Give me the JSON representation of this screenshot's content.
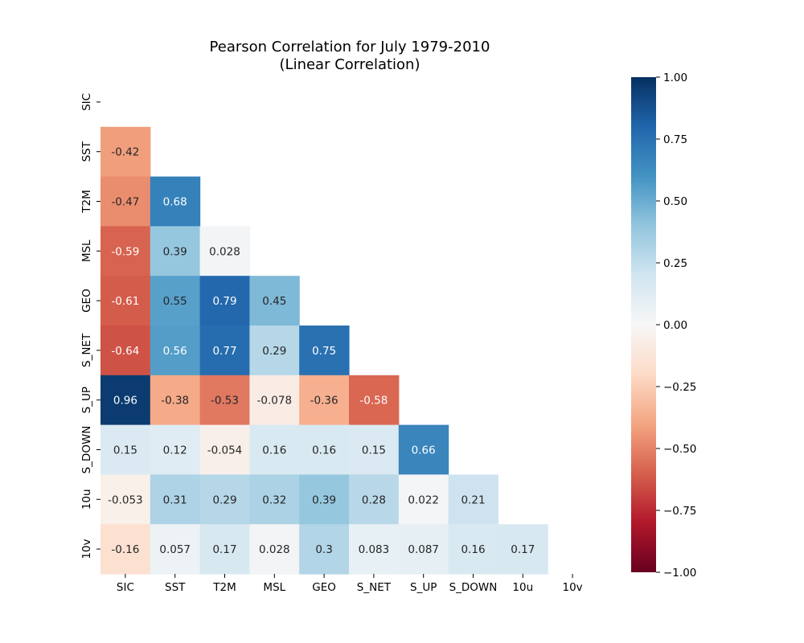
{
  "chart_data": {
    "type": "heatmap",
    "title_lines": [
      "Pearson Correlation for July 1979-2010",
      "(Linear Correlation)"
    ],
    "xlabel": "",
    "ylabel": "",
    "labels": [
      "SIC",
      "SST",
      "T2M",
      "MSL",
      "GEO",
      "S_NET",
      "S_UP",
      "S_DOWN",
      "10u",
      "10v"
    ],
    "mask": "upper-triangle-including-diagonal",
    "cells": [
      {
        "row": 1,
        "col": 0,
        "value": -0.42,
        "label": "-0.42"
      },
      {
        "row": 2,
        "col": 0,
        "value": -0.47,
        "label": "-0.47"
      },
      {
        "row": 2,
        "col": 1,
        "value": 0.68,
        "label": "0.68"
      },
      {
        "row": 3,
        "col": 0,
        "value": -0.59,
        "label": "-0.59"
      },
      {
        "row": 3,
        "col": 1,
        "value": 0.39,
        "label": "0.39"
      },
      {
        "row": 3,
        "col": 2,
        "value": 0.028,
        "label": "0.028"
      },
      {
        "row": 4,
        "col": 0,
        "value": -0.61,
        "label": "-0.61"
      },
      {
        "row": 4,
        "col": 1,
        "value": 0.55,
        "label": "0.55"
      },
      {
        "row": 4,
        "col": 2,
        "value": 0.79,
        "label": "0.79"
      },
      {
        "row": 4,
        "col": 3,
        "value": 0.45,
        "label": "0.45"
      },
      {
        "row": 5,
        "col": 0,
        "value": -0.64,
        "label": "-0.64"
      },
      {
        "row": 5,
        "col": 1,
        "value": 0.56,
        "label": "0.56"
      },
      {
        "row": 5,
        "col": 2,
        "value": 0.77,
        "label": "0.77"
      },
      {
        "row": 5,
        "col": 3,
        "value": 0.29,
        "label": "0.29"
      },
      {
        "row": 5,
        "col": 4,
        "value": 0.75,
        "label": "0.75"
      },
      {
        "row": 6,
        "col": 0,
        "value": 0.96,
        "label": "0.96"
      },
      {
        "row": 6,
        "col": 1,
        "value": -0.38,
        "label": "-0.38"
      },
      {
        "row": 6,
        "col": 2,
        "value": -0.53,
        "label": "-0.53"
      },
      {
        "row": 6,
        "col": 3,
        "value": -0.078,
        "label": "-0.078"
      },
      {
        "row": 6,
        "col": 4,
        "value": -0.36,
        "label": "-0.36"
      },
      {
        "row": 6,
        "col": 5,
        "value": -0.58,
        "label": "-0.58"
      },
      {
        "row": 7,
        "col": 0,
        "value": 0.15,
        "label": "0.15"
      },
      {
        "row": 7,
        "col": 1,
        "value": 0.12,
        "label": "0.12"
      },
      {
        "row": 7,
        "col": 2,
        "value": -0.054,
        "label": "-0.054"
      },
      {
        "row": 7,
        "col": 3,
        "value": 0.16,
        "label": "0.16"
      },
      {
        "row": 7,
        "col": 4,
        "value": 0.16,
        "label": "0.16"
      },
      {
        "row": 7,
        "col": 5,
        "value": 0.15,
        "label": "0.15"
      },
      {
        "row": 7,
        "col": 6,
        "value": 0.66,
        "label": "0.66"
      },
      {
        "row": 8,
        "col": 0,
        "value": -0.053,
        "label": "-0.053"
      },
      {
        "row": 8,
        "col": 1,
        "value": 0.31,
        "label": "0.31"
      },
      {
        "row": 8,
        "col": 2,
        "value": 0.29,
        "label": "0.29"
      },
      {
        "row": 8,
        "col": 3,
        "value": 0.32,
        "label": "0.32"
      },
      {
        "row": 8,
        "col": 4,
        "value": 0.39,
        "label": "0.39"
      },
      {
        "row": 8,
        "col": 5,
        "value": 0.28,
        "label": "0.28"
      },
      {
        "row": 8,
        "col": 6,
        "value": 0.022,
        "label": "0.022"
      },
      {
        "row": 8,
        "col": 7,
        "value": 0.21,
        "label": "0.21"
      },
      {
        "row": 9,
        "col": 0,
        "value": -0.16,
        "label": "-0.16"
      },
      {
        "row": 9,
        "col": 1,
        "value": 0.057,
        "label": "0.057"
      },
      {
        "row": 9,
        "col": 2,
        "value": 0.17,
        "label": "0.17"
      },
      {
        "row": 9,
        "col": 3,
        "value": 0.028,
        "label": "0.028"
      },
      {
        "row": 9,
        "col": 4,
        "value": 0.3,
        "label": "0.3"
      },
      {
        "row": 9,
        "col": 5,
        "value": 0.083,
        "label": "0.083"
      },
      {
        "row": 9,
        "col": 6,
        "value": 0.087,
        "label": "0.087"
      },
      {
        "row": 9,
        "col": 7,
        "value": 0.16,
        "label": "0.16"
      },
      {
        "row": 9,
        "col": 8,
        "value": 0.17,
        "label": "0.17"
      }
    ],
    "colorbar": {
      "colormap": "RdBu",
      "vmin": -1.0,
      "vmax": 1.0,
      "ticks": [
        -1.0,
        -0.75,
        -0.5,
        -0.25,
        0.0,
        0.25,
        0.5,
        0.75,
        1.0
      ],
      "tick_labels": [
        "−1.00",
        "−0.75",
        "−0.50",
        "−0.25",
        "0.00",
        "0.25",
        "0.50",
        "0.75",
        "1.00"
      ],
      "position": "right"
    },
    "colormap_stops": [
      "#67001f",
      "#b2182b",
      "#d6604d",
      "#f4a582",
      "#fddbc7",
      "#f7f7f7",
      "#d1e5f0",
      "#92c5de",
      "#4393c3",
      "#2166ac",
      "#053061"
    ]
  }
}
